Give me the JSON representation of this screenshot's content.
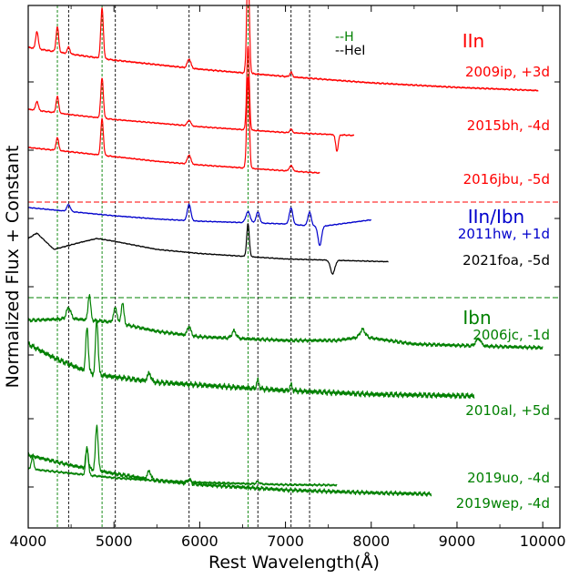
{
  "chart_data": {
    "type": "line",
    "xlabel": "Rest Wavelength(Å)",
    "ylabel": "Normalized Flux + Constant",
    "xlim": [
      4000,
      10200
    ],
    "x_ticks": [
      "4000",
      "5000",
      "6000",
      "7000",
      "8000",
      "9000",
      "10000"
    ],
    "x_tick_values": [
      4000,
      5000,
      6000,
      7000,
      8000,
      9000,
      10000
    ],
    "grid": false,
    "legend": {
      "position": "top-center",
      "entries": [
        {
          "label": "--H",
          "color": "#008000"
        },
        {
          "label": "--HeI",
          "color": "#000000"
        }
      ]
    },
    "line_markers": {
      "H": {
        "color": "#008000",
        "wavelengths": [
          4340,
          4861,
          6563
        ]
      },
      "HeI": {
        "color": "#000000",
        "wavelengths": [
          4471,
          5016,
          5876,
          6678,
          7065,
          7281
        ]
      }
    },
    "groups": [
      {
        "label": "IIn",
        "color": "#ff0000"
      },
      {
        "label": "IIn/Ibn",
        "color": "#0000cc"
      },
      {
        "label": "Ibn",
        "color": "#008000"
      }
    ],
    "separators": [
      {
        "between": "IIn | IIn/Ibn",
        "color": "#ff0000"
      },
      {
        "between": "IIn/Ibn | Ibn",
        "color": "#008000"
      }
    ],
    "series": [
      {
        "name": "2009ip, +3d",
        "color": "#ff0000",
        "group": "IIn",
        "x_range": [
          4000,
          9950
        ],
        "continuum": [
          [
            4000,
            1.0
          ],
          [
            4500,
            0.85
          ],
          [
            5000,
            0.72
          ],
          [
            5500,
            0.62
          ],
          [
            6000,
            0.52
          ],
          [
            6500,
            0.44
          ],
          [
            7000,
            0.36
          ],
          [
            8000,
            0.22
          ],
          [
            9000,
            0.12
          ],
          [
            9950,
            0.05
          ]
        ],
        "features": [
          [
            4102,
            0.38,
            15
          ],
          [
            4340,
            0.55,
            15
          ],
          [
            4471,
            0.15,
            15
          ],
          [
            4861,
            1.1,
            15
          ],
          [
            5876,
            0.2,
            20
          ],
          [
            6563,
            2.4,
            15
          ],
          [
            7065,
            0.1,
            15
          ]
        ]
      },
      {
        "name": "2015bh, -4d",
        "color": "#ff0000",
        "group": "IIn",
        "x_range": [
          4000,
          7800
        ],
        "continuum": [
          [
            4000,
            1.0
          ],
          [
            4500,
            0.85
          ],
          [
            5000,
            0.72
          ],
          [
            5500,
            0.62
          ],
          [
            6000,
            0.52
          ],
          [
            6500,
            0.44
          ],
          [
            7000,
            0.36
          ],
          [
            7800,
            0.28
          ]
        ],
        "features": [
          [
            4102,
            0.25,
            15
          ],
          [
            4340,
            0.45,
            15
          ],
          [
            4861,
            1.1,
            15
          ],
          [
            5876,
            0.15,
            20
          ],
          [
            6563,
            2.3,
            15
          ],
          [
            7065,
            0.1,
            15
          ],
          [
            7600,
            -0.45,
            15
          ]
        ]
      },
      {
        "name": "2016jbu, -5d",
        "color": "#ff0000",
        "group": "IIn",
        "x_range": [
          4000,
          7400
        ],
        "continuum": [
          [
            4000,
            1.0
          ],
          [
            4500,
            0.88
          ],
          [
            5000,
            0.75
          ],
          [
            5500,
            0.62
          ],
          [
            6000,
            0.52
          ],
          [
            6500,
            0.44
          ],
          [
            7000,
            0.36
          ],
          [
            7400,
            0.3
          ]
        ],
        "features": [
          [
            4340,
            0.35,
            15
          ],
          [
            4861,
            1.0,
            15
          ],
          [
            5876,
            0.25,
            20
          ],
          [
            6563,
            2.5,
            15
          ],
          [
            7065,
            0.15,
            20
          ]
        ]
      },
      {
        "name": "2011hw, +1d",
        "color": "#0000cc",
        "group": "IIn/Ibn",
        "x_range": [
          4000,
          8000
        ],
        "continuum": [
          [
            4000,
            1.0
          ],
          [
            4500,
            0.85
          ],
          [
            5000,
            0.7
          ],
          [
            5500,
            0.58
          ],
          [
            6000,
            0.5
          ],
          [
            6500,
            0.45
          ],
          [
            7000,
            0.4
          ],
          [
            7400,
            0.3
          ],
          [
            8000,
            0.55
          ]
        ],
        "features": [
          [
            4471,
            0.25,
            20
          ],
          [
            5876,
            0.6,
            20
          ],
          [
            6563,
            0.4,
            25
          ],
          [
            6678,
            0.4,
            20
          ],
          [
            7065,
            0.6,
            20
          ],
          [
            7281,
            0.5,
            20
          ],
          [
            7400,
            -0.7,
            20
          ]
        ]
      },
      {
        "name": "2021foa, -5d",
        "color": "#000000",
        "group": "IIn/Ibn",
        "x_range": [
          4000,
          8200
        ],
        "continuum": [
          [
            4000,
            1.0
          ],
          [
            4100,
            1.2
          ],
          [
            4300,
            0.6
          ],
          [
            4600,
            0.85
          ],
          [
            4800,
            1.0
          ],
          [
            5000,
            0.9
          ],
          [
            5500,
            0.6
          ],
          [
            6000,
            0.45
          ],
          [
            6500,
            0.35
          ],
          [
            7000,
            0.25
          ],
          [
            8200,
            0.15
          ]
        ],
        "features": [
          [
            6563,
            1.2,
            15
          ],
          [
            7550,
            -0.5,
            25
          ]
        ]
      },
      {
        "name": "2006jc, -1d",
        "color": "#008000",
        "group": "Ibn",
        "x_range": [
          4000,
          10000
        ],
        "continuum": [
          [
            4000,
            1.0
          ],
          [
            4500,
            1.05
          ],
          [
            5000,
            0.95
          ],
          [
            5500,
            0.7
          ],
          [
            6000,
            0.55
          ],
          [
            7000,
            0.45
          ],
          [
            7600,
            0.45
          ],
          [
            7900,
            0.55
          ],
          [
            8500,
            0.35
          ],
          [
            9200,
            0.3
          ],
          [
            10000,
            0.25
          ]
        ],
        "features": [
          [
            4471,
            0.3,
            25
          ],
          [
            4713,
            0.7,
            15
          ],
          [
            5016,
            0.4,
            20
          ],
          [
            5100,
            0.6,
            15
          ],
          [
            5876,
            0.25,
            20
          ],
          [
            6400,
            0.2,
            25
          ],
          [
            7900,
            0.2,
            30
          ],
          [
            9250,
            0.2,
            30
          ]
        ]
      },
      {
        "name": "2010al, +5d",
        "color": "#008000",
        "group": "Ibn",
        "x_range": [
          4000,
          9200
        ],
        "continuum": [
          [
            4000,
            1.0
          ],
          [
            4300,
            0.75
          ],
          [
            4600,
            0.55
          ],
          [
            4750,
            0.45
          ],
          [
            5000,
            0.4
          ],
          [
            5500,
            0.3
          ],
          [
            6000,
            0.25
          ],
          [
            7000,
            0.15
          ],
          [
            8000,
            0.08
          ],
          [
            9200,
            0.05
          ]
        ],
        "features": [
          [
            4686,
            0.8,
            15
          ],
          [
            4800,
            1.0,
            15
          ],
          [
            5411,
            0.15,
            20
          ],
          [
            6678,
            0.15,
            15
          ],
          [
            7065,
            0.1,
            15
          ]
        ]
      },
      {
        "name": "2019uo, -4d",
        "color": "#008000",
        "group": "Ibn",
        "x_range": [
          4000,
          8700
        ],
        "continuum": [
          [
            4000,
            1.0
          ],
          [
            4500,
            0.75
          ],
          [
            5000,
            0.55
          ],
          [
            5500,
            0.38
          ],
          [
            6000,
            0.28
          ],
          [
            7000,
            0.15
          ],
          [
            8000,
            0.08
          ],
          [
            8700,
            0.05
          ]
        ],
        "features": [
          [
            4686,
            0.5,
            15
          ],
          [
            4800,
            1.1,
            15
          ],
          [
            5411,
            0.2,
            20
          ],
          [
            5876,
            0.1,
            20
          ]
        ]
      },
      {
        "name": "2019wep, -4d",
        "color": "#008000",
        "group": "Ibn",
        "x_range": [
          4000,
          7600
        ],
        "continuum": [
          [
            4000,
            1.0
          ],
          [
            4500,
            0.8
          ],
          [
            5000,
            0.6
          ],
          [
            5500,
            0.48
          ],
          [
            6000,
            0.4
          ],
          [
            7000,
            0.3
          ],
          [
            7600,
            0.28
          ]
        ],
        "features": [
          [
            4050,
            0.5,
            15
          ],
          [
            4686,
            1.2,
            15
          ],
          [
            5876,
            0.1,
            20
          ],
          [
            6678,
            0.1,
            20
          ]
        ]
      }
    ]
  }
}
